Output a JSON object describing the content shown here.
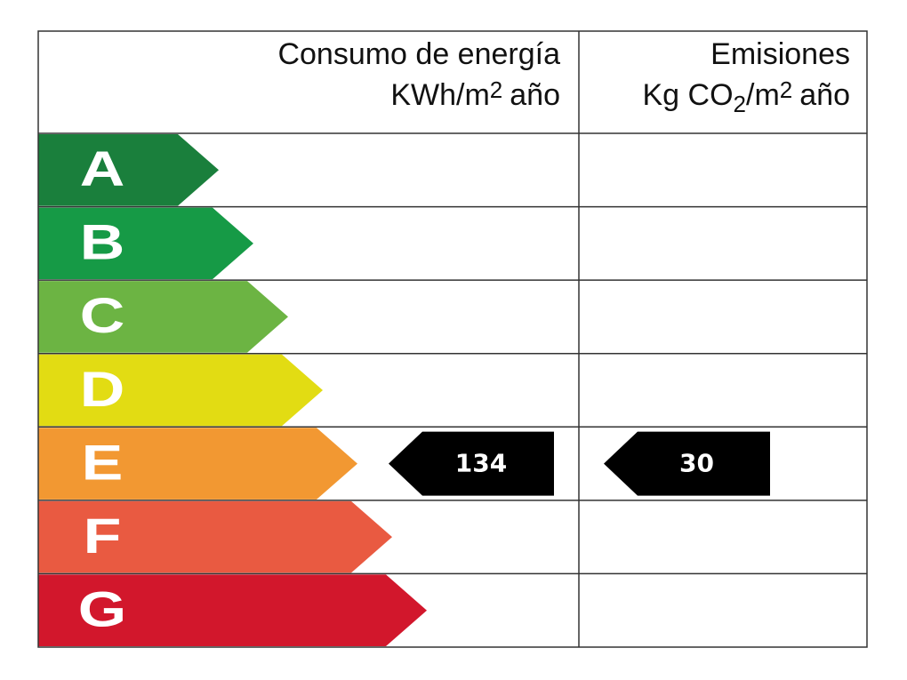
{
  "header": {
    "consumption": {
      "title": "Consumo de energía",
      "unit": [
        "KWh/m",
        "2",
        "año"
      ]
    },
    "emissions": {
      "title": "Emisiones",
      "unit": [
        "Kg CO",
        "2",
        "/m",
        "2",
        "año"
      ]
    }
  },
  "rows": [
    {
      "letter": "A",
      "color": "#1a7f3c"
    },
    {
      "letter": "B",
      "color": "#169a46"
    },
    {
      "letter": "C",
      "color": "#6cb443"
    },
    {
      "letter": "D",
      "color": "#e2dc13"
    },
    {
      "letter": "E",
      "color": "#f29832",
      "consumption": 134,
      "emissions": 30
    },
    {
      "letter": "F",
      "color": "#e95a41"
    },
    {
      "letter": "G",
      "color": "#d2172c"
    }
  ]
}
